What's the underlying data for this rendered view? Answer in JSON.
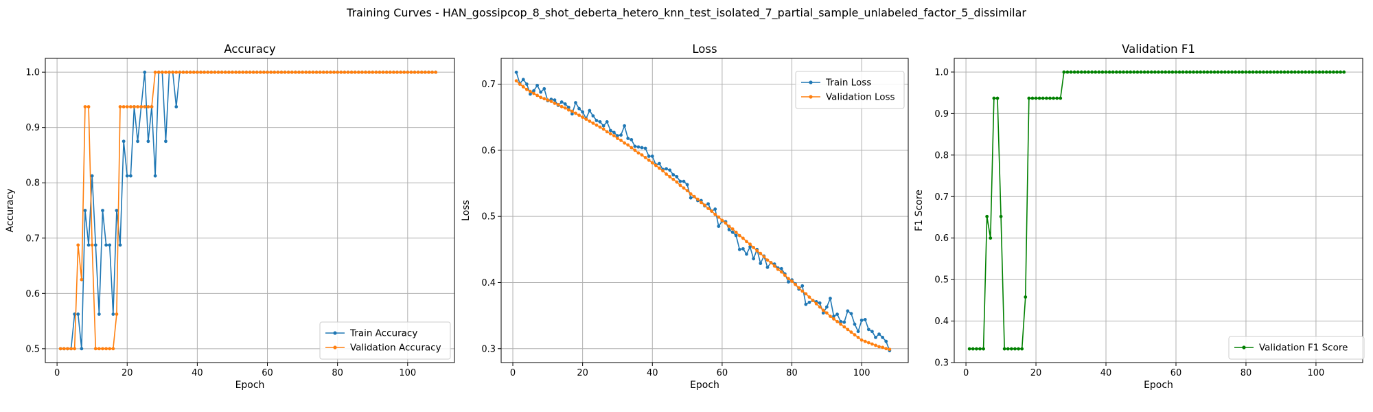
{
  "figure": {
    "suptitle": "Training Curves - HAN_gossipcop_8_shot_deberta_hetero_knn_test_isolated_7_partial_sample_unlabeled_factor_5_dissimilar"
  },
  "colors": {
    "blue": "#1f77b4",
    "orange": "#ff7f0e",
    "green": "#008000",
    "grid": "#b0b0b0"
  },
  "chart_data": [
    {
      "type": "line",
      "title": "Accuracy",
      "xlabel": "Epoch",
      "ylabel": "Accuracy",
      "xlim": [
        -3.35,
        113.35
      ],
      "ylim": [
        0.475,
        1.025
      ],
      "xticks": [
        0,
        20,
        40,
        60,
        80,
        100
      ],
      "yticks": [
        0.5,
        0.6,
        0.7,
        0.8,
        0.9,
        1.0
      ],
      "ytick_labels": [
        "0.5",
        "0.6",
        "0.7",
        "0.8",
        "0.9",
        "1.0"
      ],
      "grid": true,
      "legend_position": "lower-right",
      "epochs": 108,
      "series": [
        {
          "name": "Train Accuracy",
          "color": "#1f77b4",
          "values": [
            0.5,
            0.5,
            0.5,
            0.5,
            0.5625,
            0.5625,
            0.5,
            0.75,
            0.6875,
            0.8125,
            0.6875,
            0.5625,
            0.75,
            0.6875,
            0.6875,
            0.5625,
            0.75,
            0.6875,
            0.875,
            0.8125,
            0.8125,
            0.9375,
            0.875,
            0.9375,
            1.0,
            0.875,
            0.9375,
            0.8125,
            1.0,
            1.0,
            0.875,
            1.0,
            1.0,
            0.9375,
            1.0,
            1.0,
            1.0,
            1.0,
            1.0,
            1.0,
            1.0,
            1.0,
            1.0,
            1.0,
            1.0,
            1.0,
            1.0,
            1.0,
            1.0,
            1.0,
            1.0,
            1.0,
            1.0,
            1.0,
            1.0,
            1.0,
            1.0,
            1.0,
            1.0,
            1.0,
            1.0,
            1.0,
            1.0,
            1.0,
            1.0,
            1.0,
            1.0,
            1.0,
            1.0,
            1.0,
            1.0,
            1.0,
            1.0,
            1.0,
            1.0,
            1.0,
            1.0,
            1.0,
            1.0,
            1.0,
            1.0,
            1.0,
            1.0,
            1.0,
            1.0,
            1.0,
            1.0,
            1.0,
            1.0,
            1.0,
            1.0,
            1.0,
            1.0,
            1.0,
            1.0,
            1.0,
            1.0,
            1.0,
            1.0,
            1.0,
            1.0,
            1.0,
            1.0,
            1.0,
            1.0,
            1.0,
            1.0,
            1.0
          ]
        },
        {
          "name": "Validation Accuracy",
          "color": "#ff7f0e",
          "values": [
            0.5,
            0.5,
            0.5,
            0.5,
            0.5,
            0.6875,
            0.625,
            0.9375,
            0.9375,
            0.6875,
            0.5,
            0.5,
            0.5,
            0.5,
            0.5,
            0.5,
            0.5625,
            0.9375,
            0.9375,
            0.9375,
            0.9375,
            0.9375,
            0.9375,
            0.9375,
            0.9375,
            0.9375,
            0.9375,
            1.0,
            1.0,
            1.0,
            1.0,
            1.0,
            1.0,
            1.0,
            1.0,
            1.0,
            1.0,
            1.0,
            1.0,
            1.0,
            1.0,
            1.0,
            1.0,
            1.0,
            1.0,
            1.0,
            1.0,
            1.0,
            1.0,
            1.0,
            1.0,
            1.0,
            1.0,
            1.0,
            1.0,
            1.0,
            1.0,
            1.0,
            1.0,
            1.0,
            1.0,
            1.0,
            1.0,
            1.0,
            1.0,
            1.0,
            1.0,
            1.0,
            1.0,
            1.0,
            1.0,
            1.0,
            1.0,
            1.0,
            1.0,
            1.0,
            1.0,
            1.0,
            1.0,
            1.0,
            1.0,
            1.0,
            1.0,
            1.0,
            1.0,
            1.0,
            1.0,
            1.0,
            1.0,
            1.0,
            1.0,
            1.0,
            1.0,
            1.0,
            1.0,
            1.0,
            1.0,
            1.0,
            1.0,
            1.0,
            1.0,
            1.0,
            1.0,
            1.0,
            1.0,
            1.0,
            1.0,
            1.0
          ]
        }
      ]
    },
    {
      "type": "line",
      "title": "Loss",
      "xlabel": "Epoch",
      "ylabel": "Loss",
      "xlim": [
        -3.35,
        113.35
      ],
      "ylim": [
        0.279,
        0.739
      ],
      "xticks": [
        0,
        20,
        40,
        60,
        80,
        100
      ],
      "yticks": [
        0.3,
        0.4,
        0.5,
        0.6,
        0.7
      ],
      "ytick_labels": [
        "0.3",
        "0.4",
        "0.5",
        "0.6",
        "0.7"
      ],
      "grid": true,
      "legend_position": "upper-right",
      "epochs": 108,
      "series": [
        {
          "name": "Train Loss",
          "color": "#1f77b4",
          "values": [
            0.718,
            0.701,
            0.707,
            0.7,
            0.685,
            0.69,
            0.698,
            0.688,
            0.693,
            0.675,
            0.677,
            0.676,
            0.668,
            0.673,
            0.67,
            0.665,
            0.655,
            0.672,
            0.663,
            0.658,
            0.648,
            0.66,
            0.652,
            0.645,
            0.643,
            0.637,
            0.643,
            0.63,
            0.627,
            0.622,
            0.623,
            0.637,
            0.618,
            0.616,
            0.606,
            0.605,
            0.604,
            0.603,
            0.591,
            0.591,
            0.578,
            0.58,
            0.571,
            0.572,
            0.57,
            0.563,
            0.56,
            0.553,
            0.553,
            0.548,
            0.528,
            0.53,
            0.524,
            0.524,
            0.516,
            0.519,
            0.508,
            0.511,
            0.485,
            0.493,
            0.492,
            0.48,
            0.476,
            0.471,
            0.45,
            0.451,
            0.443,
            0.454,
            0.436,
            0.45,
            0.429,
            0.44,
            0.423,
            0.43,
            0.428,
            0.422,
            0.421,
            0.413,
            0.401,
            0.404,
            0.398,
            0.39,
            0.395,
            0.367,
            0.37,
            0.373,
            0.371,
            0.369,
            0.354,
            0.363,
            0.376,
            0.349,
            0.352,
            0.341,
            0.34,
            0.357,
            0.353,
            0.337,
            0.326,
            0.343,
            0.344,
            0.329,
            0.326,
            0.317,
            0.322,
            0.317,
            0.311,
            0.297
          ]
        },
        {
          "name": "Validation Loss",
          "color": "#ff7f0e",
          "values": [
            0.705,
            0.7,
            0.696,
            0.692,
            0.689,
            0.686,
            0.683,
            0.68,
            0.678,
            0.676,
            0.674,
            0.671,
            0.669,
            0.666,
            0.664,
            0.661,
            0.659,
            0.656,
            0.653,
            0.65,
            0.647,
            0.644,
            0.641,
            0.638,
            0.635,
            0.632,
            0.628,
            0.625,
            0.622,
            0.618,
            0.615,
            0.611,
            0.608,
            0.604,
            0.6,
            0.596,
            0.593,
            0.589,
            0.585,
            0.581,
            0.577,
            0.573,
            0.569,
            0.564,
            0.56,
            0.556,
            0.552,
            0.547,
            0.543,
            0.539,
            0.534,
            0.53,
            0.526,
            0.521,
            0.517,
            0.512,
            0.508,
            0.503,
            0.499,
            0.494,
            0.49,
            0.485,
            0.481,
            0.476,
            0.471,
            0.467,
            0.462,
            0.458,
            0.453,
            0.448,
            0.444,
            0.439,
            0.434,
            0.43,
            0.425,
            0.42,
            0.416,
            0.411,
            0.406,
            0.402,
            0.397,
            0.392,
            0.387,
            0.383,
            0.378,
            0.373,
            0.368,
            0.363,
            0.358,
            0.354,
            0.349,
            0.345,
            0.341,
            0.337,
            0.333,
            0.329,
            0.325,
            0.321,
            0.317,
            0.313,
            0.311,
            0.309,
            0.307,
            0.305,
            0.303,
            0.302,
            0.3,
            0.299
          ]
        }
      ]
    },
    {
      "type": "line",
      "title": "Validation F1",
      "xlabel": "Epoch",
      "ylabel": "F1 Score",
      "xlim": [
        -3.35,
        113.35
      ],
      "ylim": [
        0.3,
        1.033
      ],
      "xticks": [
        0,
        20,
        40,
        60,
        80,
        100
      ],
      "yticks": [
        0.3,
        0.4,
        0.5,
        0.6,
        0.7,
        0.8,
        0.9,
        1.0
      ],
      "ytick_labels": [
        "0.3",
        "0.4",
        "0.5",
        "0.6",
        "0.7",
        "0.8",
        "0.9",
        "1.0"
      ],
      "grid": true,
      "legend_position": "lower-right",
      "epochs": 108,
      "series": [
        {
          "name": "Validation F1 Score",
          "color": "#008000",
          "values": [
            0.333,
            0.333,
            0.333,
            0.333,
            0.333,
            0.652,
            0.6,
            0.937,
            0.937,
            0.652,
            0.333,
            0.333,
            0.333,
            0.333,
            0.333,
            0.333,
            0.458,
            0.937,
            0.937,
            0.937,
            0.937,
            0.937,
            0.937,
            0.937,
            0.937,
            0.937,
            0.937,
            1.0,
            1.0,
            1.0,
            1.0,
            1.0,
            1.0,
            1.0,
            1.0,
            1.0,
            1.0,
            1.0,
            1.0,
            1.0,
            1.0,
            1.0,
            1.0,
            1.0,
            1.0,
            1.0,
            1.0,
            1.0,
            1.0,
            1.0,
            1.0,
            1.0,
            1.0,
            1.0,
            1.0,
            1.0,
            1.0,
            1.0,
            1.0,
            1.0,
            1.0,
            1.0,
            1.0,
            1.0,
            1.0,
            1.0,
            1.0,
            1.0,
            1.0,
            1.0,
            1.0,
            1.0,
            1.0,
            1.0,
            1.0,
            1.0,
            1.0,
            1.0,
            1.0,
            1.0,
            1.0,
            1.0,
            1.0,
            1.0,
            1.0,
            1.0,
            1.0,
            1.0,
            1.0,
            1.0,
            1.0,
            1.0,
            1.0,
            1.0,
            1.0,
            1.0,
            1.0,
            1.0,
            1.0,
            1.0,
            1.0,
            1.0,
            1.0,
            1.0,
            1.0,
            1.0,
            1.0,
            1.0
          ]
        }
      ]
    }
  ]
}
